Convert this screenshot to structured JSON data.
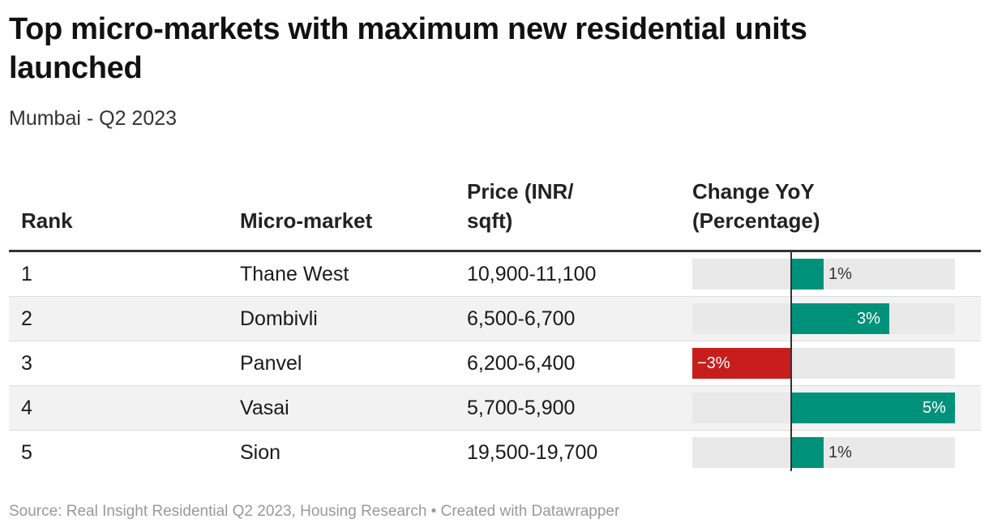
{
  "title": "Top micro-markets with maximum new residential units launched",
  "subtitle": "Mumbai - Q2 2023",
  "table": {
    "headers": {
      "rank": "Rank",
      "market": "Micro-market",
      "price_line1": "Price (INR/",
      "price_line2": "sqft)",
      "change_line1": "Change YoY",
      "change_line2": "(Percentage)"
    },
    "rows": [
      {
        "rank": "1",
        "market": "Thane West",
        "price": "10,900-11,100",
        "change": 1,
        "change_label": "1%"
      },
      {
        "rank": "2",
        "market": "Dombivli",
        "price": "6,500-6,700",
        "change": 3,
        "change_label": "3%"
      },
      {
        "rank": "3",
        "market": "Panvel",
        "price": "6,200-6,400",
        "change": -3,
        "change_label": "−3%"
      },
      {
        "rank": "4",
        "market": "Vasai",
        "price": "5,700-5,900",
        "change": 5,
        "change_label": "5%"
      },
      {
        "rank": "5",
        "market": "Sion",
        "price": "19,500-19,700",
        "change": 1,
        "change_label": "1%"
      }
    ]
  },
  "colors": {
    "positive": "#00917a",
    "negative": "#c71e1d",
    "track": "#e9e9e9"
  },
  "chart_data": {
    "type": "bar",
    "categories": [
      "Thane West",
      "Dombivli",
      "Panvel",
      "Vasai",
      "Sion"
    ],
    "values": [
      1,
      3,
      -3,
      5,
      1
    ],
    "xlim": [
      -3,
      5
    ],
    "ylabel": "Change YoY (Percentage)"
  },
  "source": "Source: Real Insight Residential Q2 2023, Housing Research • Created with Datawrapper"
}
